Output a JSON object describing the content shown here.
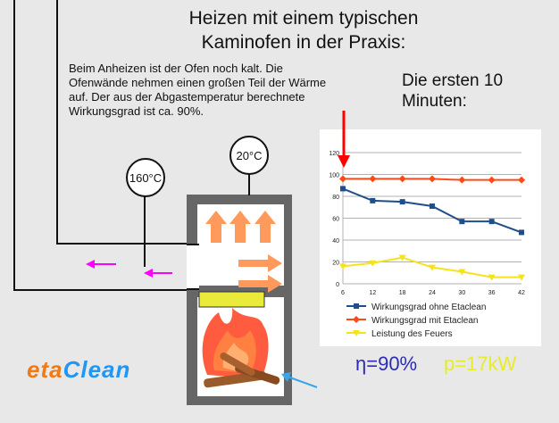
{
  "title_line1": "Heizen mit einem typischen",
  "title_line2": "Kaminofen in der Praxis:",
  "description": "Beim Anheizen ist der Ofen noch kalt. Die Ofenwände nehmen einen großen Teil der Wärme auf. Der aus der Abgastemperatur berechnete Wirkungsgrad ist ca. 90%.",
  "subheading_line1": "Die ersten 10",
  "subheading_line2": "Minuten:",
  "gauge_flue": "160°C",
  "gauge_stove": "20°C",
  "efficiency": "η=90%",
  "power": "p=17kW",
  "logo": {
    "part1": "eta",
    "part2": "Clean"
  },
  "colors": {
    "series1": "#1f4e8c",
    "series2": "#ff4a16",
    "series3": "#f5e31c",
    "arrow_magenta": "#ff00ff",
    "arrow_orange": "#ff9a5c",
    "arrow_blue": "#3aa6e8",
    "marker_red": "#ff0000"
  },
  "chart_data": {
    "type": "line",
    "x": [
      6,
      12,
      18,
      24,
      30,
      36,
      42
    ],
    "xlim": [
      6,
      42
    ],
    "ylim": [
      0,
      120
    ],
    "yticks": [
      0,
      20,
      40,
      60,
      80,
      100,
      120
    ],
    "grid": true,
    "legend_position": "bottom",
    "series": [
      {
        "name": "Wirkungsgrad ohne Etaclean",
        "values": [
          87,
          76,
          75,
          71,
          57,
          57,
          47
        ],
        "marker": "square"
      },
      {
        "name": "Wirkungsgrad mit Etaclean",
        "values": [
          96,
          96,
          96,
          96,
          95,
          95,
          95
        ],
        "marker": "diamond"
      },
      {
        "name": "Leistung des Feuers",
        "values": [
          16,
          19,
          24,
          15,
          11,
          6,
          6
        ],
        "marker": "triangle-down"
      }
    ]
  }
}
